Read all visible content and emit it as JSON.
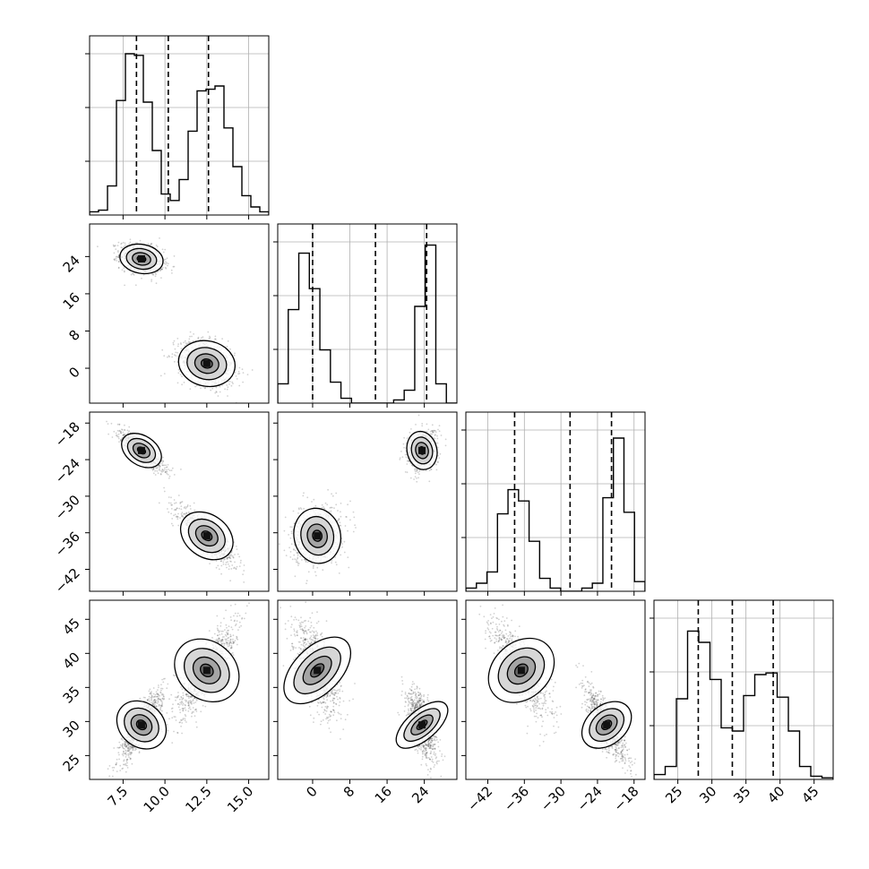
{
  "chart_data": {
    "type": "corner",
    "title": "",
    "variables": [
      {
        "ticks": [
          7.5,
          10.0,
          12.5,
          15.0
        ],
        "tick_labels": [
          "7.5",
          "10.0",
          "12.5",
          "15.0"
        ],
        "range": [
          5.5,
          16.2
        ],
        "quantiles": [
          8.3,
          10.2,
          12.6
        ]
      },
      {
        "ticks": [
          0,
          8,
          16,
          24
        ],
        "tick_labels": [
          "0",
          "8",
          "16",
          "24"
        ],
        "range": [
          -7.5,
          31.0
        ],
        "quantiles": [
          0.0,
          13.5,
          24.5
        ]
      },
      {
        "ticks": [
          -42,
          -36,
          -30,
          -24,
          -18
        ],
        "tick_labels": [
          "−42",
          "−36",
          "−30",
          "−24",
          "−18"
        ],
        "range": [
          -45.6,
          -16.2
        ],
        "quantiles": [
          -37.6,
          -28.5,
          -21.7
        ]
      },
      {
        "ticks": [
          25,
          30,
          35,
          40,
          45
        ],
        "tick_labels": [
          "25",
          "30",
          "35",
          "40",
          "45"
        ],
        "range": [
          21.5,
          47.8
        ],
        "quantiles": [
          28.0,
          33.0,
          39.0
        ]
      }
    ],
    "modes": [
      {
        "name": "",
        "weight": 0.5,
        "mean": [
          8.6,
          23.5,
          -22.5,
          29.5
        ],
        "sd": [
          0.65,
          1.6,
          1.6,
          2.6
        ]
      },
      {
        "name": "",
        "weight": 0.5,
        "mean": [
          12.5,
          1.0,
          -36.5,
          37.5
        ],
        "sd": [
          0.85,
          2.5,
          2.3,
          3.4
        ]
      }
    ],
    "histograms": [
      [
        0.02,
        0.03,
        0.18,
        0.71,
        1.0,
        0.99,
        0.7,
        0.4,
        0.13,
        0.09,
        0.22,
        0.52,
        0.77,
        0.78,
        0.8,
        0.54,
        0.3,
        0.12,
        0.05,
        0.02
      ],
      [
        0.12,
        0.58,
        0.93,
        0.71,
        0.33,
        0.13,
        0.03,
        0.0,
        0.0,
        0.0,
        0.0,
        0.02,
        0.08,
        0.6,
        0.98,
        0.12,
        0.0
      ],
      [
        0.02,
        0.05,
        0.12,
        0.48,
        0.63,
        0.56,
        0.31,
        0.08,
        0.02,
        0.0,
        0.0,
        0.02,
        0.05,
        0.58,
        0.95,
        0.49,
        0.06
      ],
      [
        0.03,
        0.08,
        0.5,
        0.92,
        0.85,
        0.62,
        0.32,
        0.3,
        0.52,
        0.65,
        0.66,
        0.51,
        0.3,
        0.08,
        0.02,
        0.01
      ]
    ],
    "grid": true
  },
  "icons": {
    "plot_marker": "histogram-step"
  }
}
